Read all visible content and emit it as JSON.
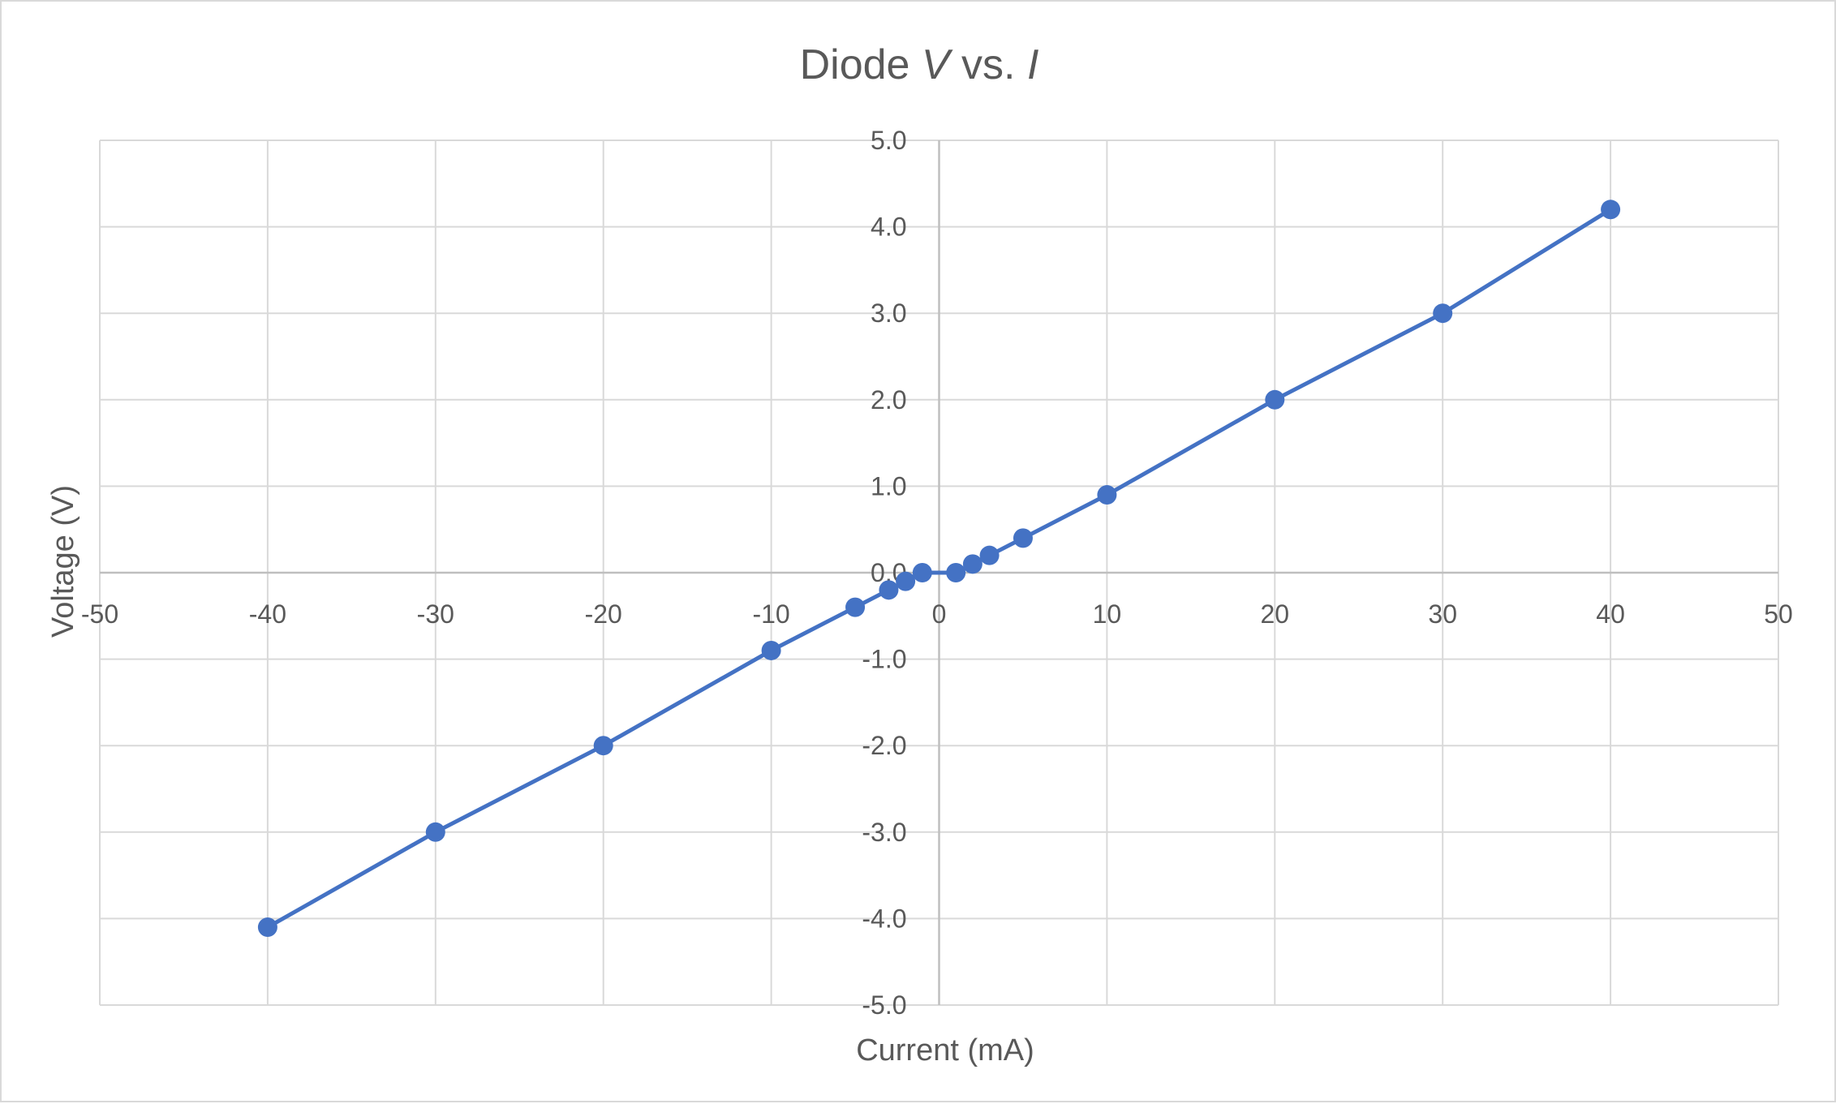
{
  "chart_data": {
    "type": "scatter",
    "title": {
      "prefix": "Diode ",
      "v": "V",
      "middle": " vs. ",
      "i": "I"
    },
    "xlabel": "Current (mA)",
    "ylabel": "Voltage (V)",
    "xlim": [
      -50,
      50
    ],
    "ylim": [
      -5,
      5
    ],
    "x_ticks": [
      -50,
      -40,
      -30,
      -20,
      -10,
      0,
      10,
      20,
      30,
      40,
      50
    ],
    "y_ticks": [
      -5,
      -4,
      -3,
      -2,
      -1,
      0,
      1,
      2,
      3,
      4,
      5
    ],
    "y_tick_decimals": 1,
    "grid": true,
    "legend": "none",
    "series_color": "#4472c4",
    "series": [
      {
        "x": [
          -40,
          -30,
          -20,
          -10,
          -5,
          -3,
          -2,
          -1,
          1,
          2,
          3,
          5,
          10,
          20,
          30,
          40
        ],
        "y": [
          -4.1,
          -3.0,
          -2.0,
          -0.9,
          -0.4,
          -0.2,
          -0.1,
          0.0,
          0.0,
          0.1,
          0.2,
          0.4,
          0.9,
          2.0,
          3.0,
          4.2
        ]
      }
    ]
  }
}
